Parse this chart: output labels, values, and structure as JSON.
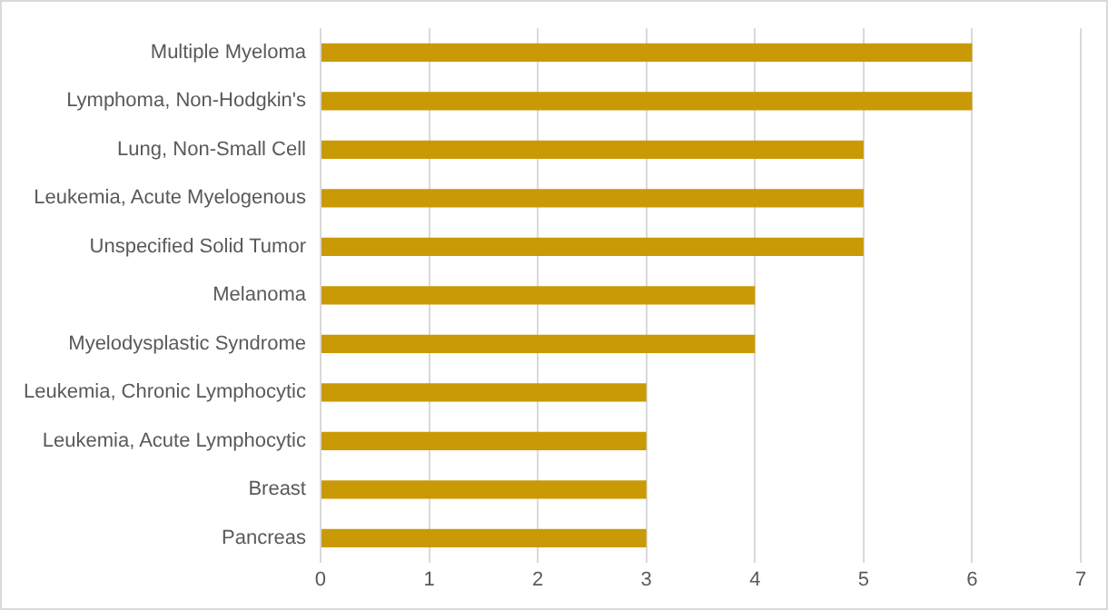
{
  "chart_data": {
    "type": "bar",
    "orientation": "horizontal",
    "categories": [
      "Multiple Myeloma",
      "Lymphoma, Non-Hodgkin's",
      "Lung, Non-Small Cell",
      "Leukemia, Acute Myelogenous",
      "Unspecified Solid Tumor",
      "Melanoma",
      "Myelodysplastic Syndrome",
      "Leukemia, Chronic Lymphocytic",
      "Leukemia, Acute Lymphocytic",
      "Breast",
      "Pancreas"
    ],
    "values": [
      6,
      6,
      5,
      5,
      5,
      4,
      4,
      3,
      3,
      3,
      3
    ],
    "color": "#c99a06",
    "xlim": [
      0,
      7
    ],
    "xticks": [
      0,
      1,
      2,
      3,
      4,
      5,
      6,
      7
    ],
    "grid": "x",
    "legend": false
  }
}
